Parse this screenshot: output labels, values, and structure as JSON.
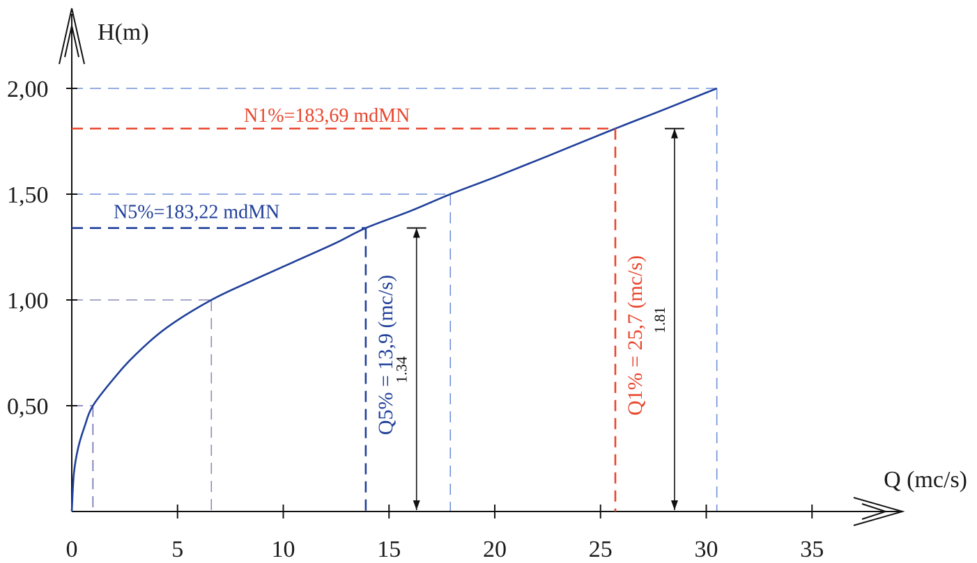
{
  "chart_data": {
    "type": "line",
    "xlabel": "Q (mc/s)",
    "ylabel": "H(m)",
    "xlim": [
      0,
      38
    ],
    "ylim": [
      0,
      2.2
    ],
    "x_ticks": [
      0,
      5,
      10,
      15,
      20,
      25,
      30,
      35
    ],
    "x_tick_labels": [
      "0",
      "5",
      "10",
      "15",
      "20",
      "25",
      "30",
      "35"
    ],
    "y_ticks": [
      0.5,
      1.0,
      1.5,
      2.0
    ],
    "y_tick_labels": [
      "0,50",
      "1,00",
      "1,50",
      "2,00"
    ],
    "series": [
      {
        "color": "#1f3f99",
        "x": [
          0,
          0.1,
          0.3,
          0.6,
          1.0,
          2.0,
          3.0,
          4.5,
          6.6,
          8.5,
          10.5,
          12.5,
          13.9,
          16.0,
          17.9,
          20.0,
          22.5,
          25.7,
          28.0,
          30.5
        ],
        "y": [
          0,
          0.18,
          0.3,
          0.4,
          0.5,
          0.63,
          0.74,
          0.87,
          1.0,
          1.09,
          1.18,
          1.27,
          1.34,
          1.42,
          1.5,
          1.58,
          1.68,
          1.81,
          1.9,
          2.0
        ]
      }
    ],
    "reference_lines": [
      {
        "h": 0.5,
        "q": 1.0,
        "color": "#6b6bb0"
      },
      {
        "h": 1.0,
        "q": 6.6,
        "color": "#8a8ab8"
      },
      {
        "h": 1.5,
        "q": 17.9,
        "color": "#6f8fd8"
      },
      {
        "h": 2.0,
        "q": 30.5,
        "color": "#6f8fd8"
      }
    ],
    "annotations": {
      "n5": {
        "text": "N5%=183,22 mdMN",
        "h": 1.34,
        "q": 13.9,
        "color": "#1f3f99"
      },
      "n1": {
        "text": "N1%=183,69 mdMN",
        "h": 1.81,
        "q": 25.7,
        "color": "#e8452c"
      },
      "q5": {
        "text": "Q5% = 13,9 (mc/s)",
        "color": "#1f3f99"
      },
      "q1": {
        "text": "Q1% = 25,7 (mc/s)",
        "color": "#e8452c"
      },
      "dim5": {
        "text": "1.34",
        "q": 16.3,
        "h": 1.34
      },
      "dim1": {
        "text": "1.81",
        "q": 28.5,
        "h": 1.81
      }
    }
  }
}
